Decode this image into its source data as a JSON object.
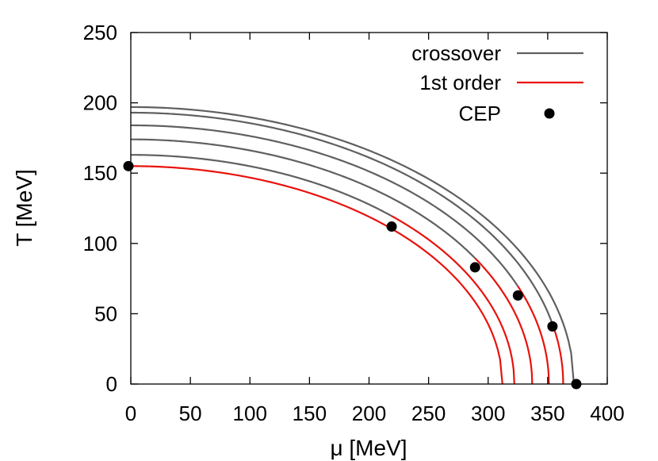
{
  "chart_data": {
    "type": "line",
    "title": "",
    "xlabel": "μ [MeV]",
    "ylabel": "T [MeV]",
    "xlim": [
      0,
      400
    ],
    "ylim": [
      0,
      250
    ],
    "xticks": [
      0,
      50,
      100,
      150,
      200,
      250,
      300,
      350,
      400
    ],
    "yticks": [
      0,
      50,
      100,
      150,
      200,
      250
    ],
    "grid": false,
    "legend": {
      "placement": "top-right",
      "entries": [
        {
          "label": "crossover",
          "kind": "line",
          "color": "#606060"
        },
        {
          "label": "1st order",
          "kind": "line",
          "color": "#e8120c"
        },
        {
          "label": "CEP",
          "kind": "point",
          "color": "#000000"
        }
      ]
    },
    "curves": [
      {
        "T0": 155,
        "mu_end": 312,
        "cep": [
          -2,
          155
        ]
      },
      {
        "T0": 163,
        "mu_end": 322,
        "cep": [
          219,
          112
        ]
      },
      {
        "T0": 174,
        "mu_end": 337,
        "cep": [
          289,
          83
        ]
      },
      {
        "T0": 184,
        "mu_end": 351,
        "cep": [
          325,
          63
        ]
      },
      {
        "T0": 193,
        "mu_end": 363,
        "cep": [
          354,
          41
        ]
      },
      {
        "T0": 197,
        "mu_end": 372,
        "cep": [
          374,
          0
        ]
      }
    ]
  }
}
